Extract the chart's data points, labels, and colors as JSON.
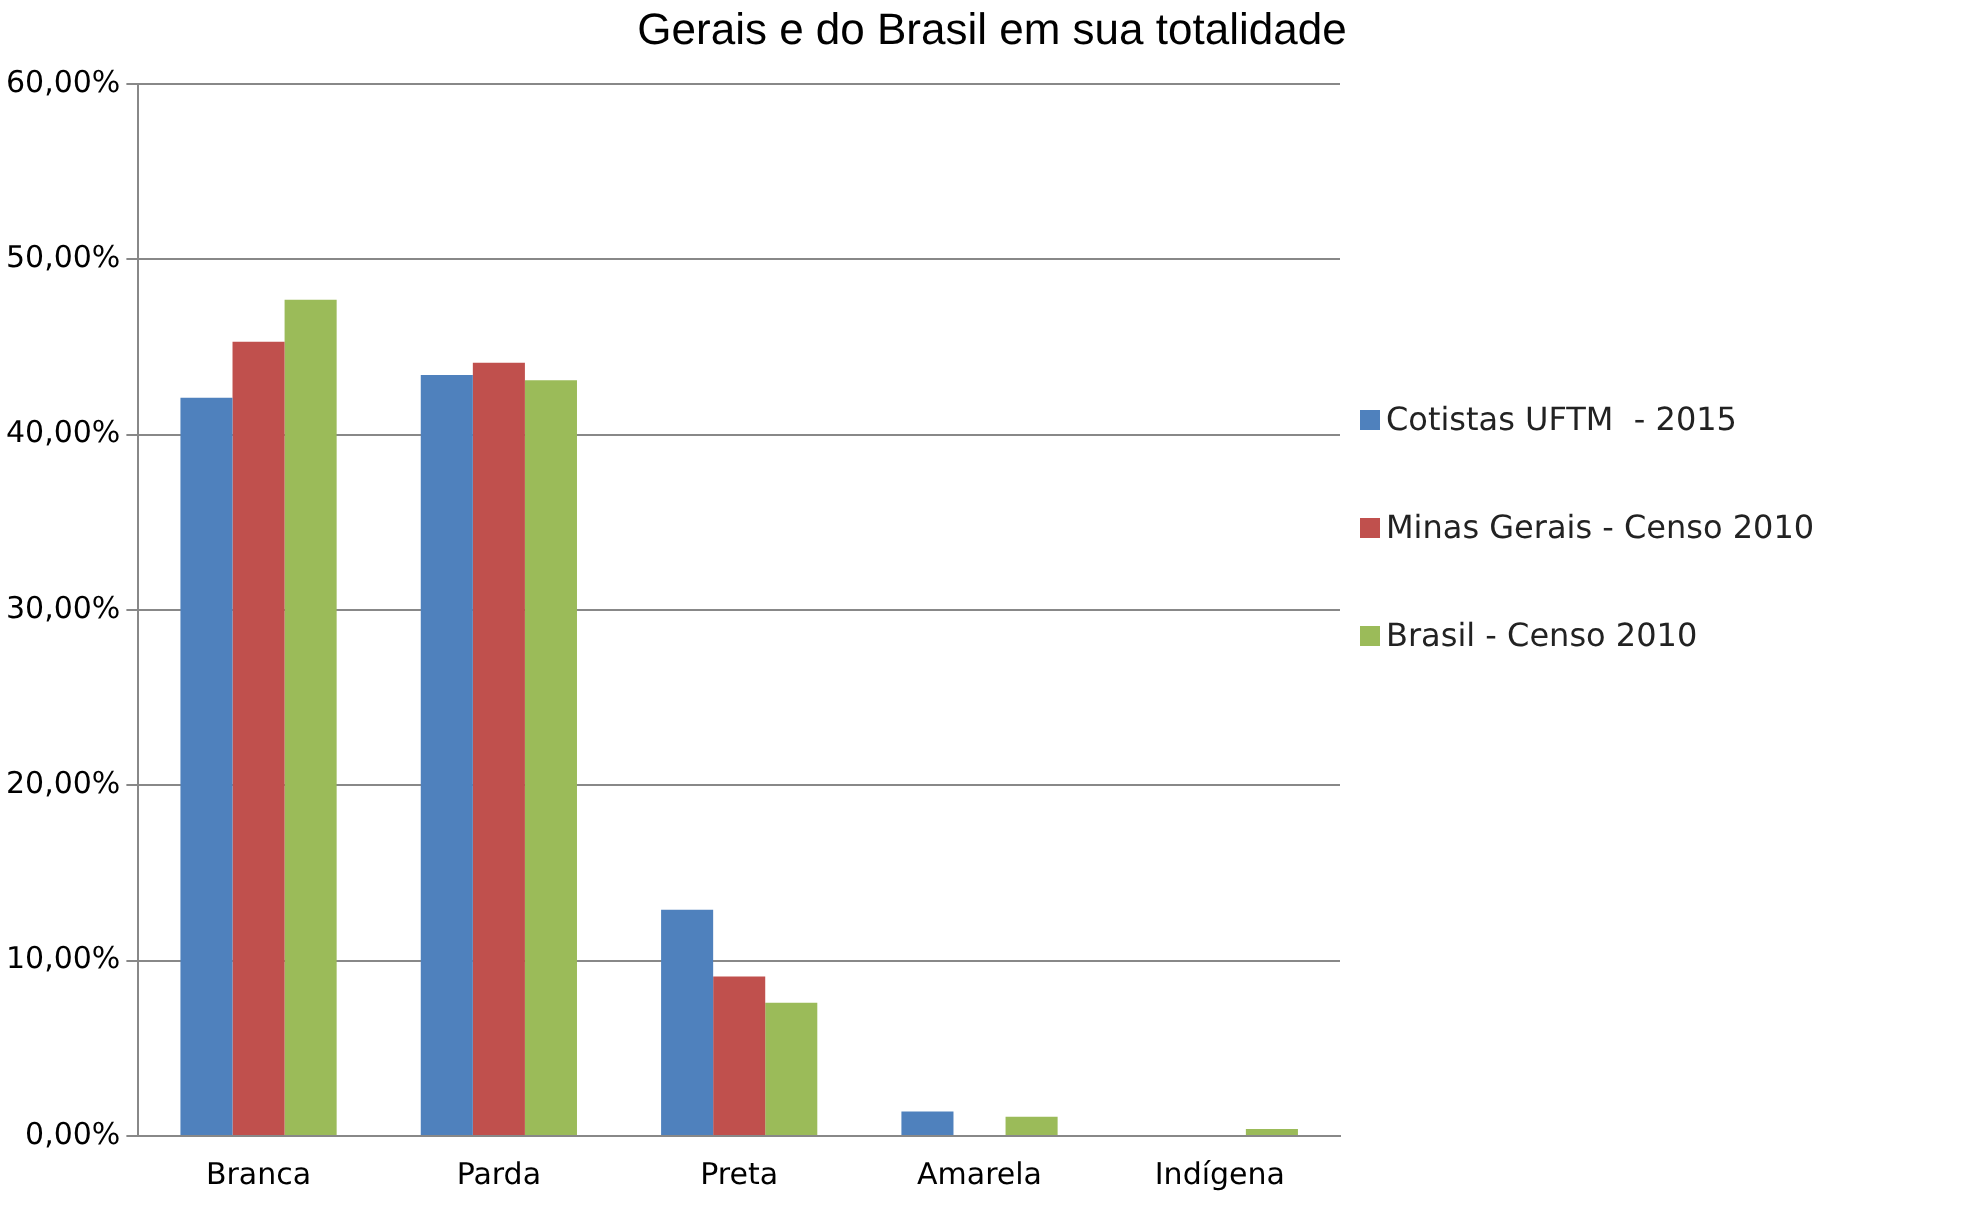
{
  "chart_data": {
    "type": "bar",
    "title": "Gerais e do Brasil em sua totalidade",
    "categories": [
      "Branca",
      "Parda",
      "Preta",
      "Amarela",
      "Indígena"
    ],
    "series": [
      {
        "name": "Cotistas UFTM  - 2015",
        "color": "#4f81bd",
        "values": [
          42.1,
          43.4,
          12.9,
          1.4,
          0
        ]
      },
      {
        "name": "Minas Gerais - Censo 2010",
        "color": "#c0504d",
        "values": [
          45.3,
          44.1,
          9.1,
          0,
          0
        ]
      },
      {
        "name": "Brasil - Censo 2010",
        "color": "#9bbb59",
        "values": [
          47.7,
          43.1,
          7.6,
          1.1,
          0.4
        ]
      }
    ],
    "ylim": [
      0,
      60
    ],
    "yticks": [
      {
        "value": 0,
        "label": "0,00%"
      },
      {
        "value": 10,
        "label": "10,00%"
      },
      {
        "value": 20,
        "label": "20,00%"
      },
      {
        "value": 30,
        "label": "30,00%"
      },
      {
        "value": 40,
        "label": "40,00%"
      },
      {
        "value": 50,
        "label": "50,00%"
      },
      {
        "value": 60,
        "label": "60,00%"
      }
    ],
    "grid": "y",
    "legend": "right"
  }
}
